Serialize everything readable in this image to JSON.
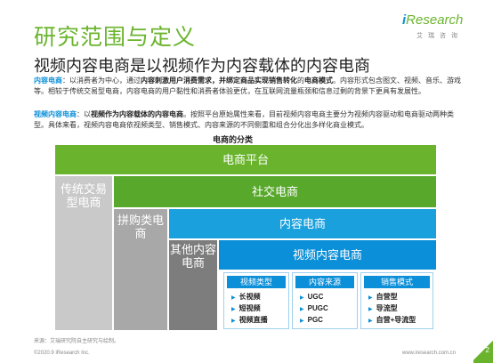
{
  "header": {
    "title": "研究范围与定义",
    "subtitle": "视频内容电商是以视频作为内容载体的内容电商"
  },
  "logo": {
    "brand_prefix": "i",
    "brand_name": "Research",
    "tagline": "艾瑞咨询"
  },
  "paragraph1": {
    "keyword": "内容电商",
    "text_a": "：以消费者为中心，通过",
    "emphasis_a": "内容刺激用户消费需求，并绑定商品实现销售转化",
    "text_b": "的",
    "emphasis_b": "电商模式",
    "text_c": "。内容形式包含图文、视频、音乐、游戏等。相较于传统交易型电商，内容电商的用户黏性和消费者体验更优，在互联网流量瓶颈和信息过剩的背景下更具有发展性。"
  },
  "paragraph2": {
    "keyword": "视频内容电商",
    "text_a": "：以",
    "emphasis_a": "视频作为内容载体的内容电商",
    "text_b": "。按照平台原始属性来看，目前视频内容电商主要分为视频内容驱动和电商驱动两种类型。具体来看，视频内容电商依视频类型、销售模式、内容来源的不同侧重和组合分化出多样化商业模式。"
  },
  "diagram": {
    "title": "电商的分类",
    "blocks": {
      "platform": "电商平台",
      "traditional": "传统交易型电商",
      "social": "社交电商",
      "groupbuy": "拼购类电商",
      "content": "内容电商",
      "other": "其他内容电商",
      "video": "视频内容电商"
    },
    "cards": {
      "video_type": {
        "title": "视频类型",
        "items": [
          "长视频",
          "短视频",
          "视频直播"
        ]
      },
      "content_source": {
        "title": "内容来源",
        "items": [
          "UGC",
          "PUGC",
          "PGC"
        ]
      },
      "sales_mode": {
        "title": "销售模式",
        "items": [
          "自营型",
          "导流型",
          "自营+导流型"
        ]
      }
    }
  },
  "footer": {
    "source": "来源：艾瑞研究院自主研究与绘制。",
    "copyright": "©2020.9 iResearch Inc.",
    "website": "www.iresearch.com.cn",
    "page_number": "2"
  },
  "colors": {
    "green_dark": "#6ab42d",
    "green_mid": "#58a82c",
    "blue": "#0b8fd8",
    "blue_light": "#1aa0dc",
    "gray_light": "#c9c9c9",
    "gray_mid": "#a8a8a8",
    "gray_dark": "#7d7d7d"
  }
}
